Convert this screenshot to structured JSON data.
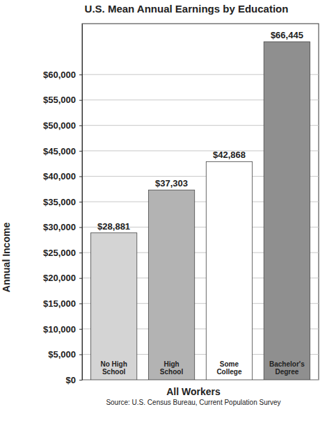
{
  "chart_data": {
    "type": "bar",
    "title": "U.S. Mean Annual Earnings by Education",
    "y_label": "Annual Income",
    "x_label": "All Workers",
    "source": "Source: U.S. Census Bureau, Current Population Survey",
    "categories": [
      "No High School",
      "High School",
      "Some College",
      "Bachelor's Degree"
    ],
    "values": [
      28881,
      37303,
      42868,
      66445
    ],
    "value_labels": [
      "$28,881",
      "$37,303",
      "$42,868",
      "$66,445"
    ],
    "colors": [
      "#d4d4d4",
      "#b3b3b3",
      "#ffffff",
      "#8f8f8f"
    ],
    "ylim": [
      0,
      70000
    ],
    "yticks": [
      {
        "value": 0,
        "label": "$0"
      },
      {
        "value": 5000,
        "label": "$5,000"
      },
      {
        "value": 10000,
        "label": "$10,000"
      },
      {
        "value": 15000,
        "label": "$15,000"
      },
      {
        "value": 20000,
        "label": "$20,000"
      },
      {
        "value": 25000,
        "label": "$25,000"
      },
      {
        "value": 30000,
        "label": "$30,000"
      },
      {
        "value": 35000,
        "label": "$35,000"
      },
      {
        "value": 40000,
        "label": "$40,000"
      },
      {
        "value": 45000,
        "label": "$45,000"
      },
      {
        "value": 50000,
        "label": "$50,000"
      },
      {
        "value": 55000,
        "label": "$55,000"
      },
      {
        "value": 60000,
        "label": "$60,000"
      }
    ],
    "grid": true,
    "data_labels": true
  }
}
